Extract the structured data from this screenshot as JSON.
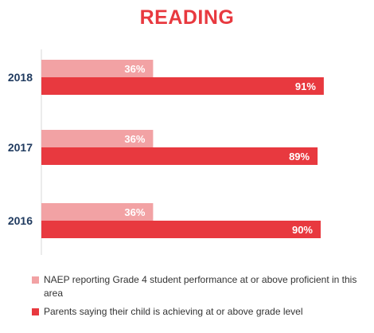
{
  "chart_data": {
    "type": "bar",
    "orientation": "horizontal",
    "title": "READING",
    "title_color": "#e8393f",
    "categories": [
      "2018",
      "2017",
      "2016"
    ],
    "series": [
      {
        "name": "NAEP reporting Grade 4 student performance at or above proficient in this area",
        "values": [
          36,
          36,
          36
        ],
        "labels": [
          "36%",
          "36%",
          "36%"
        ],
        "color": "#f2a2a4"
      },
      {
        "name": "Parents saying their child is achieving at or above grade level",
        "values": [
          91,
          89,
          90
        ],
        "labels": [
          "91%",
          "89%",
          "90%"
        ],
        "color": "#e8393f"
      }
    ],
    "xlim": [
      0,
      100
    ],
    "value_unit": "%",
    "category_label_color": "#1f3a5f",
    "data_label_color": "#ffffff",
    "grid": false,
    "legend_position": "bottom"
  }
}
